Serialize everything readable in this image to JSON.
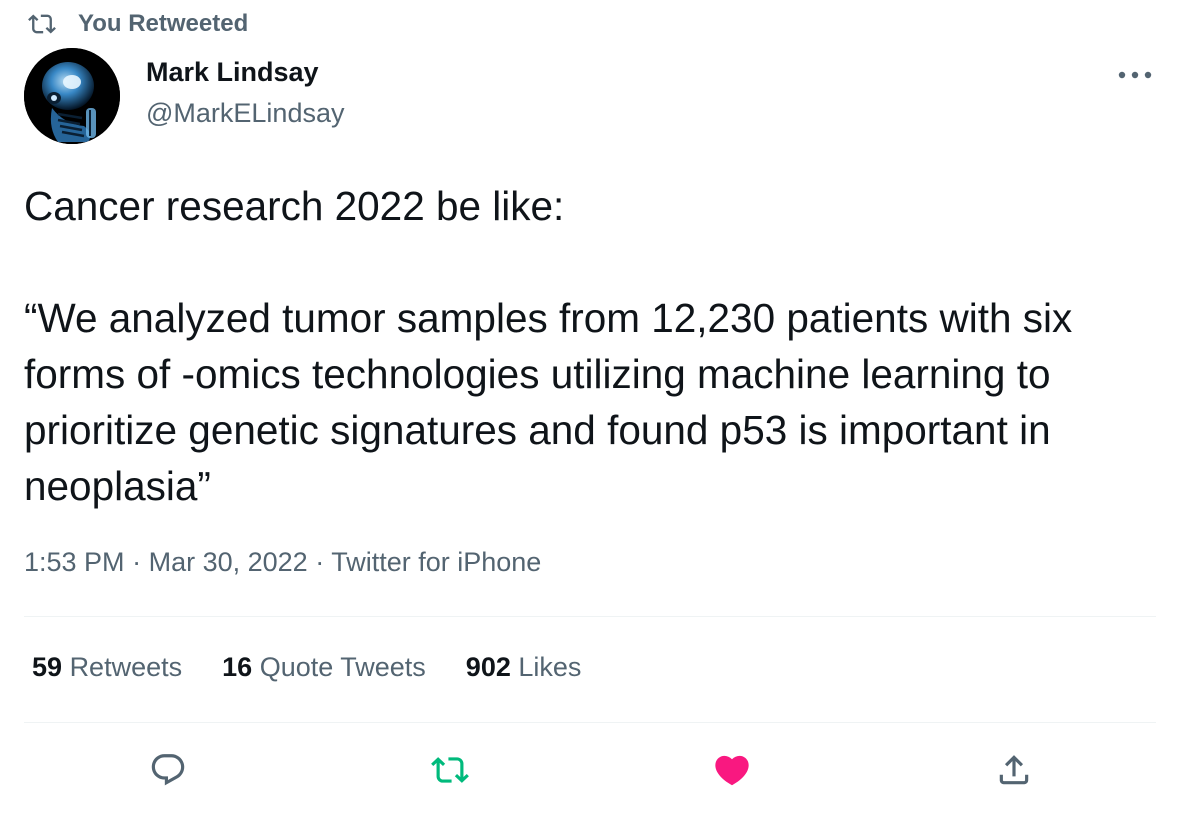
{
  "context": {
    "text": "You Retweeted",
    "icon": "retweet-icon"
  },
  "author": {
    "display_name": "Mark Lindsay",
    "handle": "@MarkELindsay",
    "avatar": "avatar"
  },
  "tweet": {
    "paragraphs": [
      "Cancer research 2022 be like:",
      "“We analyzed tumor samples from 12,230 patients with six forms of -omics technologies utilizing machine learning to prioritize genetic signatures and found p53 is important in neoplasia”"
    ]
  },
  "meta": {
    "time": "1:53 PM",
    "date": "Mar 30, 2022",
    "source": "Twitter for iPhone",
    "separator": "·"
  },
  "stats": {
    "retweets": {
      "count": "59",
      "label": "Retweets"
    },
    "quotes": {
      "count": "16",
      "label": "Quote Tweets"
    },
    "likes": {
      "count": "902",
      "label": "Likes"
    }
  },
  "actions": {
    "reply": "reply-icon",
    "retweet": "retweet-icon",
    "like": "heart-icon",
    "share": "share-icon"
  },
  "colors": {
    "text_primary": "#0f1419",
    "text_secondary": "#536471",
    "retweet_active": "#00ba7c",
    "like_active": "#f91880",
    "divider": "#eff3f4"
  }
}
